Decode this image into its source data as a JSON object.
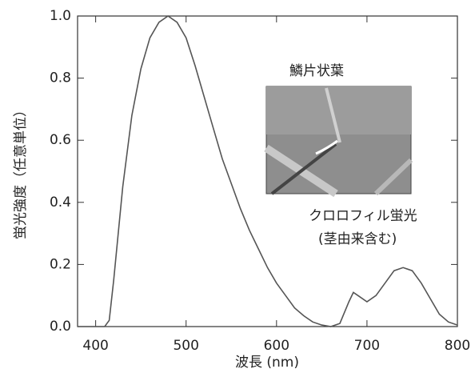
{
  "chart_data": {
    "type": "line",
    "xlabel": "波長 (nm)",
    "ylabel": "蛍光強度（任意単位）",
    "annotations": [
      "鱗片状葉",
      "クロロフィル蛍光",
      "(茎由来含む)"
    ],
    "x": [
      380,
      410,
      415,
      420,
      430,
      440,
      450,
      460,
      470,
      480,
      490,
      500,
      510,
      520,
      530,
      540,
      550,
      560,
      570,
      580,
      590,
      600,
      610,
      620,
      630,
      640,
      650,
      660,
      670,
      680,
      685,
      690,
      700,
      710,
      720,
      730,
      740,
      750,
      760,
      770,
      780,
      790,
      800
    ],
    "series": [
      {
        "color": "#555555",
        "values": [
          0,
          0,
          0.02,
          0.15,
          0.45,
          0.68,
          0.83,
          0.93,
          0.98,
          1.0,
          0.98,
          0.93,
          0.84,
          0.74,
          0.64,
          0.54,
          0.46,
          0.38,
          0.31,
          0.25,
          0.19,
          0.14,
          0.1,
          0.06,
          0.035,
          0.015,
          0.005,
          0,
          0.01,
          0.08,
          0.11,
          0.1,
          0.08,
          0.1,
          0.14,
          0.18,
          0.19,
          0.18,
          0.14,
          0.09,
          0.04,
          0.015,
          0.005
        ]
      }
    ],
    "xlim": [
      380,
      800
    ],
    "xticks": [
      400,
      500,
      600,
      700,
      800
    ],
    "ylim": [
      0,
      1.0
    ],
    "yticks": [
      {
        "value": 0,
        "label": "0.0"
      },
      0.2,
      0.4,
      0.6,
      0.8,
      {
        "value": 1.0,
        "label": "1.0"
      }
    ]
  }
}
